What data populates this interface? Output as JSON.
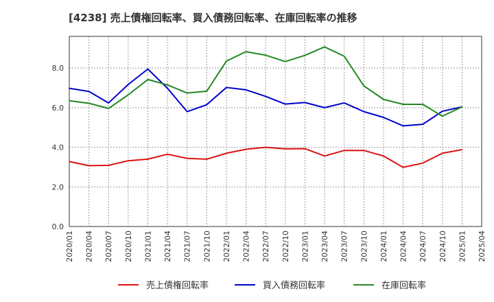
{
  "chart_data": {
    "type": "line",
    "title": "[4238]  売上債権回転率、買入債務回転率、在庫回転率の推移",
    "xlabel": "",
    "ylabel": "",
    "x": [
      "2020/01",
      "2020/04",
      "2020/07",
      "2020/10",
      "2021/01",
      "2021/04",
      "2021/07",
      "2021/10",
      "2022/01",
      "2022/04",
      "2022/07",
      "2022/10",
      "2023/01",
      "2023/04",
      "2023/07",
      "2023/10",
      "2024/01",
      "2024/04",
      "2024/07",
      "2024/10",
      "2025/01"
    ],
    "x_ticks": [
      "2020/01",
      "2020/04",
      "2020/07",
      "2020/10",
      "2021/01",
      "2021/04",
      "2021/07",
      "2021/10",
      "2022/01",
      "2022/04",
      "2022/07",
      "2022/10",
      "2023/01",
      "2023/04",
      "2023/07",
      "2023/10",
      "2024/01",
      "2024/04",
      "2024/07",
      "2024/10",
      "2025/01",
      "2025/04"
    ],
    "y_ticks": [
      "0.0",
      "2.0",
      "4.0",
      "6.0",
      "8.0"
    ],
    "ylim": [
      0,
      9.6
    ],
    "grid": true,
    "legend_position": "bottom",
    "series": [
      {
        "name": "売上債権回転率",
        "color": "#dd1111",
        "values": [
          3.28,
          3.07,
          3.09,
          3.32,
          3.4,
          3.65,
          3.44,
          3.4,
          3.7,
          3.9,
          4.0,
          3.92,
          3.93,
          3.56,
          3.84,
          3.84,
          3.56,
          2.99,
          3.2,
          3.7,
          3.88
        ]
      },
      {
        "name": "買入債務回転率",
        "color": "#0000cc",
        "values": [
          6.98,
          6.82,
          6.24,
          7.17,
          7.95,
          6.98,
          5.8,
          6.15,
          7.02,
          6.9,
          6.57,
          6.18,
          6.26,
          6.0,
          6.24,
          5.8,
          5.51,
          5.08,
          5.16,
          5.82,
          6.04
        ]
      },
      {
        "name": "在庫回転率",
        "color": "#228822",
        "values": [
          6.35,
          6.22,
          5.96,
          6.65,
          7.42,
          7.15,
          6.74,
          6.83,
          8.35,
          8.83,
          8.65,
          8.33,
          8.64,
          9.07,
          8.6,
          7.1,
          6.42,
          6.17,
          6.17,
          5.57,
          6.04
        ]
      }
    ]
  }
}
